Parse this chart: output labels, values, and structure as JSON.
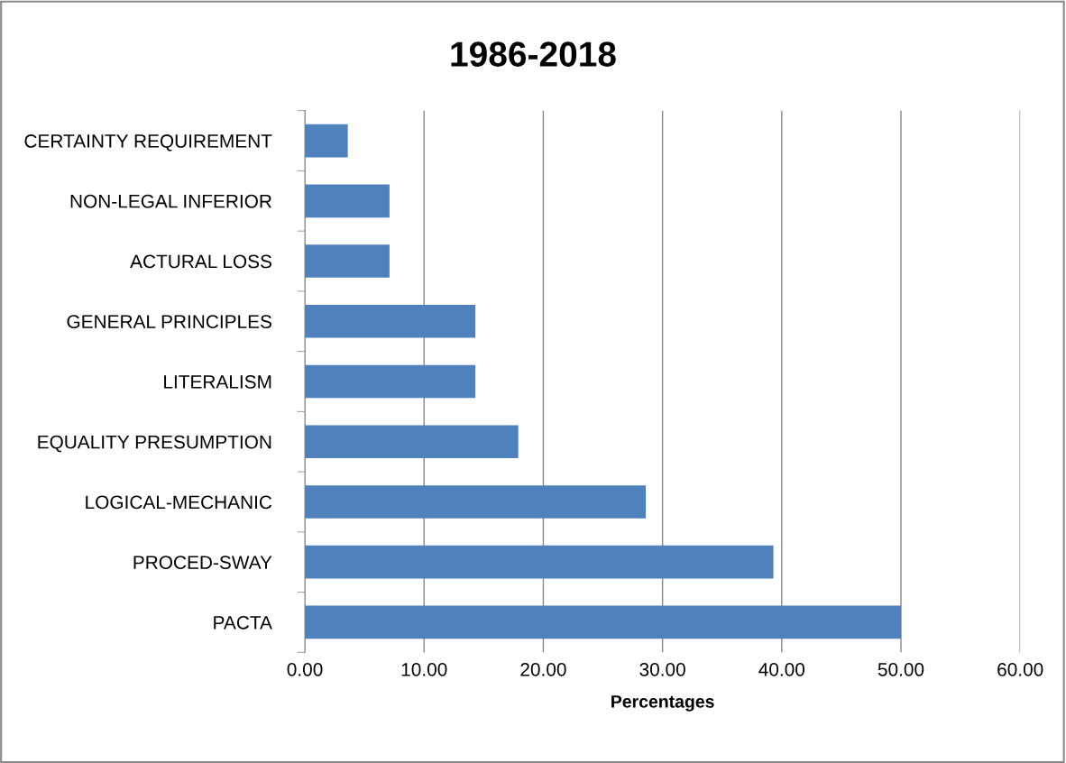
{
  "chart_data": {
    "type": "bar",
    "orientation": "horizontal",
    "title": "1986-2018",
    "xlabel": "Percentages",
    "categories": [
      "CERTAINTY REQUIREMENT",
      "NON-LEGAL INFERIOR",
      "ACTURAL LOSS",
      "GENERAL PRINCIPLES",
      "LITERALISM",
      "EQUALITY PRESUMPTION",
      "LOGICAL-MECHANIC",
      "PROCED-SWAY",
      "PACTA"
    ],
    "values": [
      3.6,
      7.1,
      7.1,
      14.3,
      14.3,
      17.9,
      28.6,
      39.3,
      50.0
    ],
    "color": "#4f81bd",
    "xlim": [
      0,
      60
    ],
    "xticks": [
      {
        "value": 0,
        "label": "0.00"
      },
      {
        "value": 10,
        "label": "10.00"
      },
      {
        "value": 20,
        "label": "20.00"
      },
      {
        "value": 30,
        "label": "30.00"
      },
      {
        "value": 40,
        "label": "40.00"
      },
      {
        "value": 50,
        "label": "50.00"
      },
      {
        "value": 60,
        "label": "60.00"
      }
    ],
    "grid": "x",
    "legend": false
  }
}
